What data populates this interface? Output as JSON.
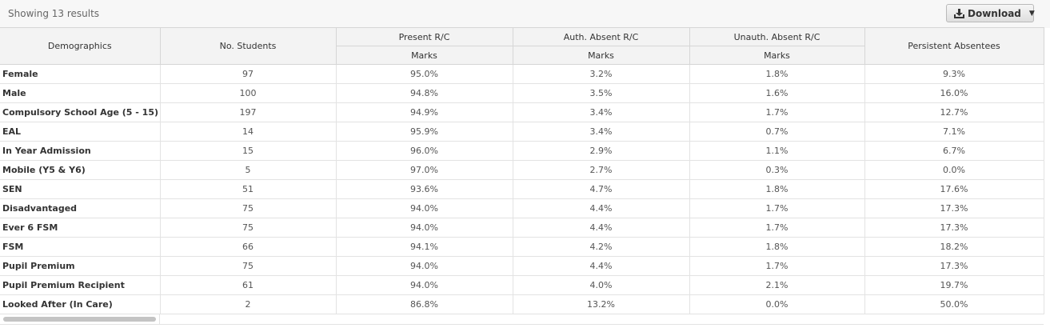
{
  "toolbar": {
    "results_text": "Showing 13 results",
    "download_label": "Download",
    "download_icon": "download-icon",
    "dropdown_icon": "caret-down-icon"
  },
  "table": {
    "headers": {
      "demographics": "Demographics",
      "students": "No. Students",
      "present": "Present R/C",
      "auth": "Auth. Absent R/C",
      "unauth": "Unauth. Absent R/C",
      "persistent": "Persistent Absentees",
      "marks": "Marks"
    },
    "rows": [
      {
        "label": "Female",
        "students": "97",
        "present": "95.0%",
        "auth": "3.2%",
        "unauth": "1.8%",
        "persistent": "9.3%"
      },
      {
        "label": "Male",
        "students": "100",
        "present": "94.8%",
        "auth": "3.5%",
        "unauth": "1.6%",
        "persistent": "16.0%"
      },
      {
        "label": "Compulsory School Age (5 - 15)",
        "students": "197",
        "present": "94.9%",
        "auth": "3.4%",
        "unauth": "1.7%",
        "persistent": "12.7%"
      },
      {
        "label": "EAL",
        "students": "14",
        "present": "95.9%",
        "auth": "3.4%",
        "unauth": "0.7%",
        "persistent": "7.1%"
      },
      {
        "label": "In Year Admission",
        "students": "15",
        "present": "96.0%",
        "auth": "2.9%",
        "unauth": "1.1%",
        "persistent": "6.7%"
      },
      {
        "label": "Mobile (Y5 & Y6)",
        "students": "5",
        "present": "97.0%",
        "auth": "2.7%",
        "unauth": "0.3%",
        "persistent": "0.0%"
      },
      {
        "label": "SEN",
        "students": "51",
        "present": "93.6%",
        "auth": "4.7%",
        "unauth": "1.8%",
        "persistent": "17.6%"
      },
      {
        "label": "Disadvantaged",
        "students": "75",
        "present": "94.0%",
        "auth": "4.4%",
        "unauth": "1.7%",
        "persistent": "17.3%"
      },
      {
        "label": "Ever 6 FSM",
        "students": "75",
        "present": "94.0%",
        "auth": "4.4%",
        "unauth": "1.7%",
        "persistent": "17.3%"
      },
      {
        "label": "FSM",
        "students": "66",
        "present": "94.1%",
        "auth": "4.2%",
        "unauth": "1.8%",
        "persistent": "18.2%"
      },
      {
        "label": "Pupil Premium",
        "students": "75",
        "present": "94.0%",
        "auth": "4.4%",
        "unauth": "1.7%",
        "persistent": "17.3%"
      },
      {
        "label": "Pupil Premium Recipient",
        "students": "61",
        "present": "94.0%",
        "auth": "4.0%",
        "unauth": "2.1%",
        "persistent": "19.7%"
      },
      {
        "label": "Looked After (In Care)",
        "students": "2",
        "present": "86.8%",
        "auth": "13.2%",
        "unauth": "0.0%",
        "persistent": "50.0%"
      }
    ]
  }
}
